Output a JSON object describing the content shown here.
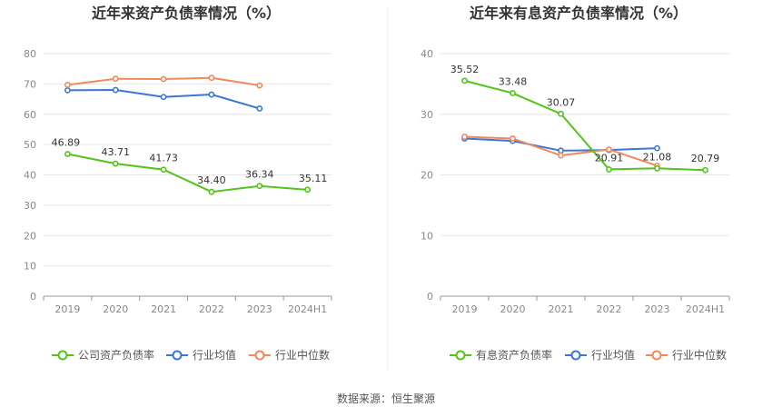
{
  "source_label": "数据来源：恒生聚源",
  "chart_data": [
    {
      "type": "line",
      "title": "近年来资产负债率情况（%）",
      "categories": [
        "2019",
        "2020",
        "2021",
        "2022",
        "2023",
        "2024H1"
      ],
      "ylim": [
        0,
        80
      ],
      "yticks": [
        0,
        10,
        20,
        30,
        40,
        50,
        60,
        70,
        80
      ],
      "grid": true,
      "legend_position": "bottom",
      "series": [
        {
          "name": "公司资产负债率",
          "color": "#52c41a",
          "values": [
            46.89,
            43.71,
            41.73,
            34.4,
            36.34,
            35.11
          ],
          "labels": [
            "46.89",
            "43.71",
            "41.73",
            "34.40",
            "36.34",
            "35.11"
          ]
        },
        {
          "name": "行业均值",
          "color": "#3a77d6",
          "values": [
            67.9,
            68.0,
            65.7,
            66.5,
            61.9,
            null
          ]
        },
        {
          "name": "行业中位数",
          "color": "#f08a5d",
          "values": [
            69.7,
            71.7,
            71.6,
            72.0,
            69.5,
            null
          ]
        }
      ]
    },
    {
      "type": "line",
      "title": "近年来有息资产负债率情况（%）",
      "categories": [
        "2019",
        "2020",
        "2021",
        "2022",
        "2023",
        "2024H1"
      ],
      "ylim": [
        0,
        40
      ],
      "yticks": [
        0,
        10,
        20,
        30,
        40
      ],
      "grid": true,
      "legend_position": "bottom",
      "series": [
        {
          "name": "有息资产负债率",
          "color": "#52c41a",
          "values": [
            35.52,
            33.48,
            30.07,
            20.91,
            21.08,
            20.79
          ],
          "labels": [
            "35.52",
            "33.48",
            "30.07",
            "20.91",
            "21.08",
            "20.79"
          ]
        },
        {
          "name": "行业均值",
          "color": "#3a77d6",
          "values": [
            26.0,
            25.6,
            24.0,
            24.1,
            24.4,
            null
          ]
        },
        {
          "name": "行业中位数",
          "color": "#f08a5d",
          "values": [
            26.3,
            26.0,
            23.2,
            24.2,
            21.5,
            null
          ]
        }
      ]
    }
  ]
}
